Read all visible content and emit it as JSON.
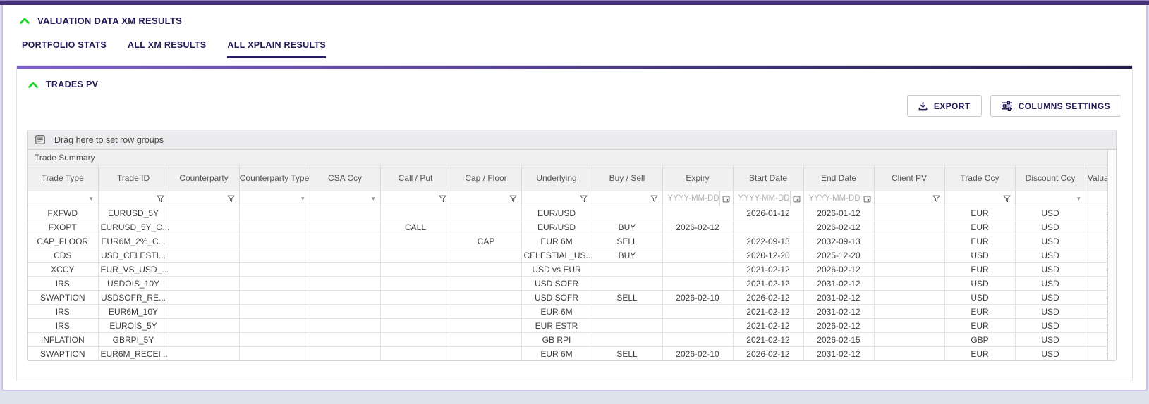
{
  "theme": {
    "topbar_purple": "#443179",
    "accent_navy": "#231a57",
    "chevron_green": "#1fd428",
    "panel_gradient_start": "#7e60d2",
    "panel_gradient_end": "#241b4d",
    "page_bg": "#dde3ea",
    "header_bg": "#f0f0f1",
    "grid_border": "#d9d9da"
  },
  "section": {
    "title": "VALUATION DATA XM RESULTS"
  },
  "tabs": [
    {
      "label": "PORTFOLIO STATS",
      "active": false
    },
    {
      "label": "ALL XM RESULTS",
      "active": false
    },
    {
      "label": "ALL XPLAIN RESULTS",
      "active": true
    }
  ],
  "panel": {
    "title": "TRADES PV"
  },
  "toolbar": {
    "export_label": "EXPORT",
    "columns_settings_label": "COLUMNS SETTINGS"
  },
  "grid": {
    "row_group_hint": "Drag here to set row groups",
    "group_header": "Trade Summary",
    "date_placeholder": "YYYY-MM-DD",
    "columns": [
      {
        "label": "Trade Type",
        "filter": "select"
      },
      {
        "label": "Trade ID",
        "filter": "text"
      },
      {
        "label": "Counterparty",
        "filter": "text"
      },
      {
        "label": "Counterparty Type",
        "filter": "select"
      },
      {
        "label": "CSA Ccy",
        "filter": "select"
      },
      {
        "label": "Call / Put",
        "filter": "text"
      },
      {
        "label": "Cap / Floor",
        "filter": "text"
      },
      {
        "label": "Underlying",
        "filter": "text"
      },
      {
        "label": "Buy / Sell",
        "filter": "text"
      },
      {
        "label": "Expiry",
        "filter": "date"
      },
      {
        "label": "Start Date",
        "filter": "date"
      },
      {
        "label": "End Date",
        "filter": "date"
      },
      {
        "label": "Client PV",
        "filter": "text"
      },
      {
        "label": "Trade Ccy",
        "filter": "text"
      },
      {
        "label": "Discount Ccy",
        "filter": "select"
      },
      {
        "label": "Valuation",
        "filter": "none"
      }
    ],
    "rows": [
      [
        "FXFWD",
        "EURUSD_5Y",
        "",
        "",
        "",
        "",
        "",
        "EUR/USD",
        "",
        "",
        "2026-01-12",
        "2026-01-12",
        "",
        "EUR",
        "USD",
        "OK"
      ],
      [
        "FXOPT",
        "EURUSD_5Y_O...",
        "",
        "",
        "",
        "CALL",
        "",
        "EUR/USD",
        "BUY",
        "2026-02-12",
        "",
        "2026-02-12",
        "",
        "EUR",
        "USD",
        "OK"
      ],
      [
        "CAP_FLOOR",
        "EUR6M_2%_C...",
        "",
        "",
        "",
        "",
        "CAP",
        "EUR 6M",
        "SELL",
        "",
        "2022-09-13",
        "2032-09-13",
        "",
        "EUR",
        "USD",
        "OK"
      ],
      [
        "CDS",
        "USD_CELESTI...",
        "",
        "",
        "",
        "",
        "",
        "CELESTIAL_US...",
        "BUY",
        "",
        "2020-12-20",
        "2025-12-20",
        "",
        "USD",
        "USD",
        "OK"
      ],
      [
        "XCCY",
        "EUR_VS_USD_...",
        "",
        "",
        "",
        "",
        "",
        "USD vs EUR",
        "",
        "",
        "2021-02-12",
        "2026-02-12",
        "",
        "EUR",
        "USD",
        "OK"
      ],
      [
        "IRS",
        "USDOIS_10Y",
        "",
        "",
        "",
        "",
        "",
        "USD SOFR",
        "",
        "",
        "2021-02-12",
        "2031-02-12",
        "",
        "USD",
        "USD",
        "OK"
      ],
      [
        "SWAPTION",
        "USDSOFR_RE...",
        "",
        "",
        "",
        "",
        "",
        "USD SOFR",
        "SELL",
        "2026-02-10",
        "2026-02-12",
        "2031-02-12",
        "",
        "USD",
        "USD",
        "OK"
      ],
      [
        "IRS",
        "EUR6M_10Y",
        "",
        "",
        "",
        "",
        "",
        "EUR 6M",
        "",
        "",
        "2021-02-12",
        "2031-02-12",
        "",
        "EUR",
        "USD",
        "OK"
      ],
      [
        "IRS",
        "EUROIS_5Y",
        "",
        "",
        "",
        "",
        "",
        "EUR ESTR",
        "",
        "",
        "2021-02-12",
        "2026-02-12",
        "",
        "EUR",
        "USD",
        "OK"
      ],
      [
        "INFLATION",
        "GBRPI_5Y",
        "",
        "",
        "",
        "",
        "",
        "GB RPI",
        "",
        "",
        "2021-02-12",
        "2026-02-15",
        "",
        "GBP",
        "USD",
        "OK"
      ],
      [
        "SWAPTION",
        "EUR6M_RECEI...",
        "",
        "",
        "",
        "",
        "",
        "EUR 6M",
        "SELL",
        "2026-02-10",
        "2026-02-12",
        "2031-02-12",
        "",
        "EUR",
        "USD",
        "OK"
      ]
    ]
  }
}
